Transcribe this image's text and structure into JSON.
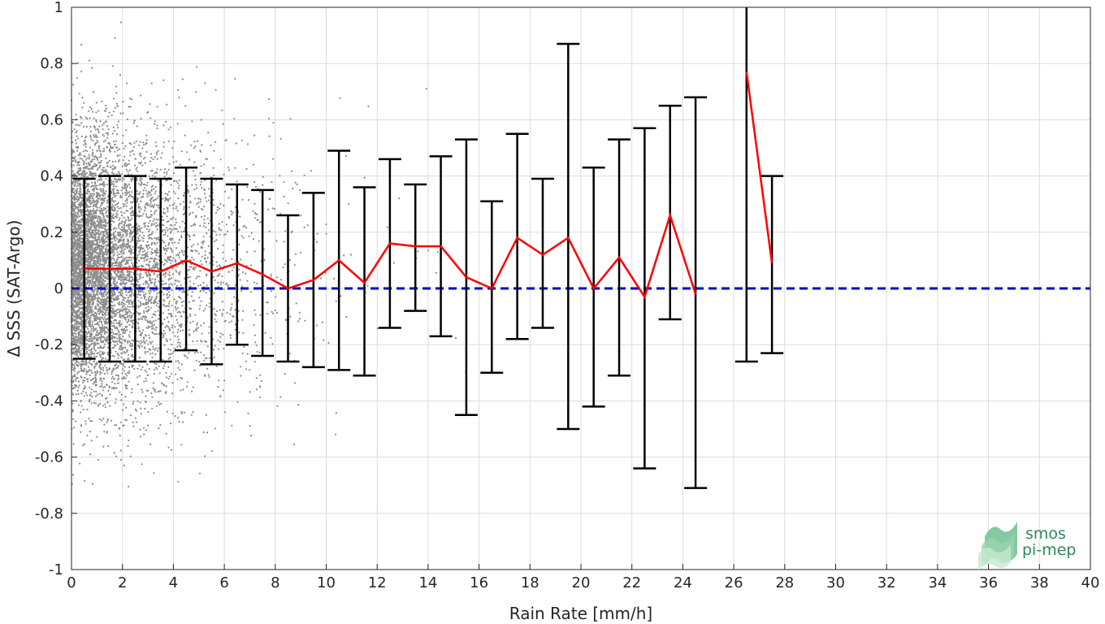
{
  "chart_data": {
    "type": "scatter",
    "xlabel": "Rain Rate [mm/h]",
    "ylabel": "Δ SSS (SAT-Argo)",
    "xlim": [
      0,
      40
    ],
    "ylim": [
      -1,
      1
    ],
    "x_ticks": [
      0,
      2,
      4,
      6,
      8,
      10,
      12,
      14,
      16,
      18,
      20,
      22,
      24,
      26,
      28,
      30,
      32,
      34,
      36,
      38,
      40
    ],
    "y_ticks": [
      -1,
      -0.8,
      -0.6,
      -0.4,
      -0.2,
      0,
      0.2,
      0.4,
      0.6,
      0.8,
      1
    ],
    "y_tick_labels": [
      "-1",
      "-0.8",
      "-0.6",
      "-0.4",
      "-0.2",
      "0",
      "0.2",
      "0.4",
      "0.6",
      "0.8",
      "1"
    ],
    "grid": true,
    "reference_line": {
      "y": 0,
      "color": "#0000cc",
      "style": "dashed"
    },
    "series": [
      {
        "type": "errorbar",
        "color": "#000000",
        "x": [
          0.5,
          1.5,
          2.5,
          3.5,
          4.5,
          5.5,
          6.5,
          7.5,
          8.5,
          9.5,
          10.5,
          11.5,
          12.5,
          13.5,
          14.5,
          15.5,
          16.5,
          17.5,
          18.5,
          19.5,
          20.5,
          21.5,
          22.5,
          23.5,
          24.5,
          26.5,
          27.5
        ],
        "lower": [
          -0.25,
          -0.26,
          -0.26,
          -0.26,
          -0.22,
          -0.27,
          -0.2,
          -0.24,
          -0.26,
          -0.28,
          -0.29,
          -0.31,
          -0.14,
          -0.08,
          -0.17,
          -0.45,
          -0.3,
          -0.18,
          -0.14,
          -0.5,
          -0.42,
          -0.31,
          -0.64,
          -0.11,
          -0.71,
          -0.26,
          -0.23
        ],
        "upper": [
          0.39,
          0.4,
          0.4,
          0.39,
          0.43,
          0.39,
          0.37,
          0.35,
          0.26,
          0.34,
          0.49,
          0.36,
          0.46,
          0.37,
          0.47,
          0.53,
          0.31,
          0.55,
          0.39,
          0.87,
          0.43,
          0.53,
          0.57,
          0.65,
          0.68,
          1.0,
          0.4
        ]
      },
      {
        "type": "line",
        "color": "#ff0000",
        "segments": [
          {
            "x": [
              0.5,
              1.5,
              2.5,
              3.5,
              4.5,
              5.5,
              6.5,
              7.5,
              8.5,
              9.5,
              10.5,
              11.5,
              12.5,
              13.5,
              14.5,
              15.5,
              16.5,
              17.5,
              18.5,
              19.5,
              20.5,
              21.5,
              22.5,
              23.5,
              24.5
            ],
            "y": [
              0.07,
              0.07,
              0.07,
              0.06,
              0.1,
              0.06,
              0.09,
              0.05,
              0.0,
              0.03,
              0.1,
              0.02,
              0.16,
              0.15,
              0.15,
              0.04,
              0.0,
              0.18,
              0.12,
              0.18,
              0.0,
              0.11,
              -0.03,
              0.26,
              -0.02
            ]
          },
          {
            "x": [
              26.5,
              27.5
            ],
            "y": [
              0.77,
              0.09
            ]
          }
        ]
      },
      {
        "type": "scatter",
        "color": "#8c8c8c",
        "description_count": 7000
      }
    ]
  },
  "logo": {
    "line1": "smos",
    "line2": "pi-mep",
    "color": "#2e8b57"
  }
}
